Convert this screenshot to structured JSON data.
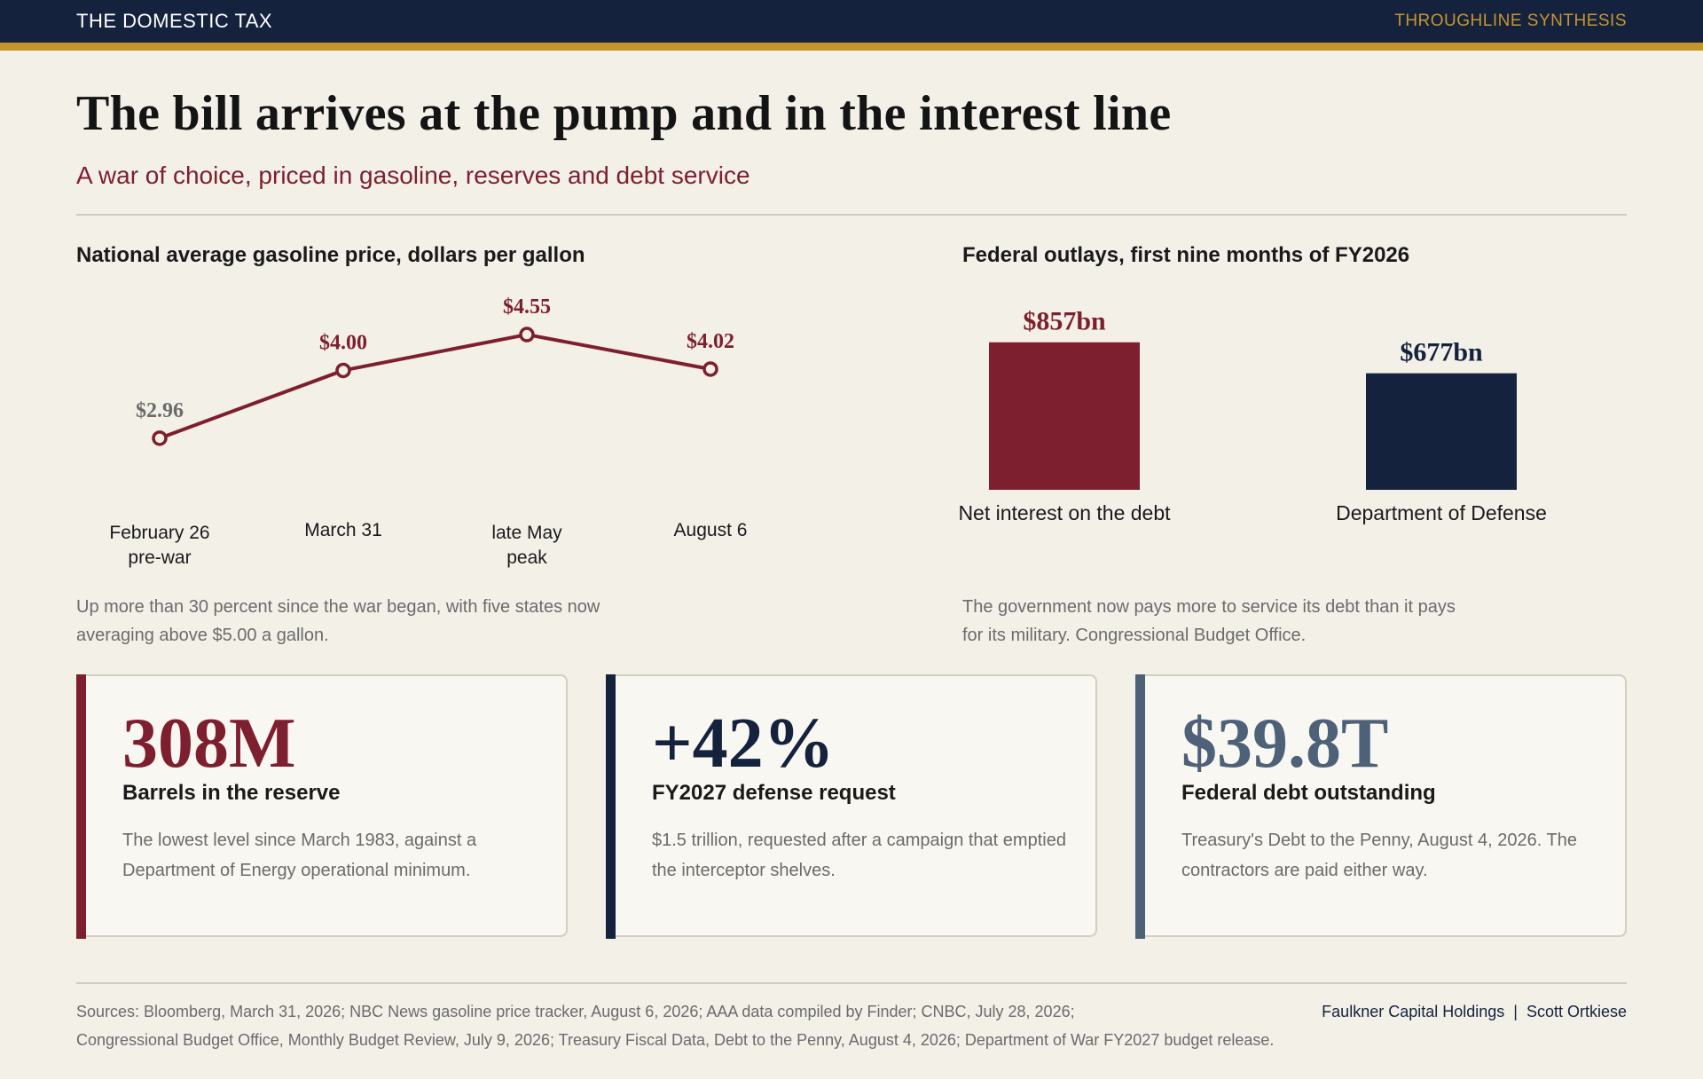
{
  "header": {
    "brand": "THE DOMESTIC TAX",
    "tag": "THROUGHLINE SYNTHESIS"
  },
  "title": "The bill arrives at the pump and in the interest line",
  "subtitle": "A war of choice, priced in gasoline, reserves and debt service",
  "colors": {
    "maroon": "#7d1f2e",
    "navy": "#14223d",
    "slate": "#4d6178",
    "gold": "#c2942c"
  },
  "chart_data": [
    {
      "type": "line",
      "title": "National average gasoline price, dollars per gallon",
      "categories": [
        "February 26\npre-war",
        "March 31",
        "late May\npeak",
        "August 6"
      ],
      "values": [
        2.96,
        4.0,
        4.55,
        4.02
      ],
      "data_labels": [
        "$2.96",
        "$4.00",
        "$4.55",
        "$4.02"
      ],
      "ylim": [
        2.4,
        5.0
      ],
      "grid": false,
      "note": "Up more than 30 percent since the war began, with five states now averaging above $5.00 a gallon."
    },
    {
      "type": "bar",
      "title": "Federal outlays, first nine months of FY2026",
      "categories": [
        "Net interest on the debt",
        "Department of Defense"
      ],
      "values": [
        857,
        677
      ],
      "data_labels": [
        "$857bn",
        "$677bn"
      ],
      "bar_colors": [
        "#7d1f2e",
        "#14223d"
      ],
      "ylim": [
        0,
        1000
      ],
      "grid": false,
      "note": "The government now pays more to service its debt than it pays for its military. Congressional Budget Office."
    }
  ],
  "cards": [
    {
      "value": "308M",
      "label": "Barrels in the reserve",
      "desc": "The lowest level since March 1983, against a Department of Energy operational minimum.",
      "color": "#7d1f2e"
    },
    {
      "value": "+42%",
      "label": "FY2027 defense request",
      "desc": "$1.5 trillion, requested after a campaign that emptied the interceptor shelves.",
      "color": "#14223d"
    },
    {
      "value": "$39.8T",
      "label": "Federal debt outstanding",
      "desc": "Treasury's Debt to the Penny, August 4, 2026. The contractors are paid either way.",
      "color": "#4d6178"
    }
  ],
  "footer": {
    "sources_line1": "Sources: Bloomberg, March 31, 2026; NBC News gasoline price tracker, August 6, 2026; AAA data compiled by Finder; CNBC, July 28, 2026;",
    "sources_line2": "Congressional Budget Office, Monthly Budget Review, July 9, 2026; Treasury Fiscal Data, Debt to the Penny, August 4, 2026; Department of War FY2027 budget release.",
    "credit": "Faulkner Capital Holdings  |  Scott Ortkiese"
  }
}
